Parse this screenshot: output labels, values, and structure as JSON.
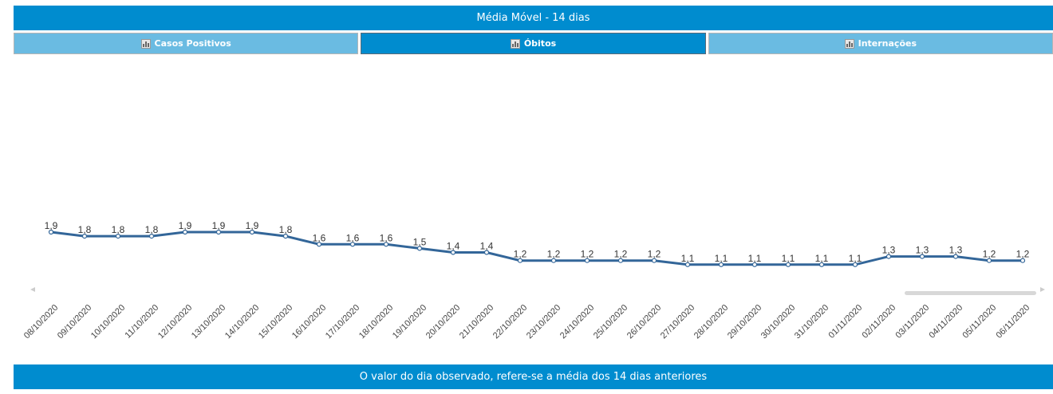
{
  "header": {
    "title": "Média Móvel - 14 dias"
  },
  "tabs": [
    {
      "label": "Casos Positivos",
      "icon": "bar-chart-icon",
      "active": false
    },
    {
      "label": "Óbitos",
      "icon": "bar-chart-icon",
      "active": true
    },
    {
      "label": "Internações",
      "icon": "bar-chart-icon",
      "active": false
    }
  ],
  "footer": {
    "text": "O valor do dia observado, refere-se a média dos 14 dias anteriores"
  },
  "colors": {
    "primary": "#008ccf",
    "tab_inactive": "#6abbe2",
    "line": "#336699"
  },
  "chart_data": {
    "type": "line",
    "title": "",
    "xlabel": "",
    "ylabel": "",
    "categories": [
      "08/10/2020",
      "09/10/2020",
      "10/10/2020",
      "11/10/2020",
      "12/10/2020",
      "13/10/2020",
      "14/10/2020",
      "15/10/2020",
      "16/10/2020",
      "17/10/2020",
      "18/10/2020",
      "19/10/2020",
      "20/10/2020",
      "21/10/2020",
      "22/10/2020",
      "23/10/2020",
      "24/10/2020",
      "25/10/2020",
      "26/10/2020",
      "27/10/2020",
      "28/10/2020",
      "29/10/2020",
      "30/10/2020",
      "31/10/2020",
      "01/11/2020",
      "02/11/2020",
      "03/11/2020",
      "04/11/2020",
      "05/11/2020",
      "06/11/2020"
    ],
    "series": [
      {
        "name": "Óbitos",
        "values": [
          1.9,
          1.8,
          1.8,
          1.8,
          1.9,
          1.9,
          1.9,
          1.8,
          1.6,
          1.6,
          1.6,
          1.5,
          1.4,
          1.4,
          1.2,
          1.2,
          1.2,
          1.2,
          1.2,
          1.1,
          1.1,
          1.1,
          1.1,
          1.1,
          1.1,
          1.3,
          1.3,
          1.3,
          1.2,
          1.2
        ]
      }
    ],
    "data_labels": [
      "1,9",
      "1,8",
      "1,8",
      "1,8",
      "1,9",
      "1,9",
      "1,9",
      "1,8",
      "1,6",
      "1,6",
      "1,6",
      "1,5",
      "1,4",
      "1,4",
      "1,2",
      "1,2",
      "1,2",
      "1,2",
      "1,2",
      "1,1",
      "1,1",
      "1,1",
      "1,1",
      "1,1",
      "1,1",
      "1,3",
      "1,3",
      "1,3",
      "1,2",
      "1,2"
    ],
    "grid": false,
    "legend": "none"
  }
}
